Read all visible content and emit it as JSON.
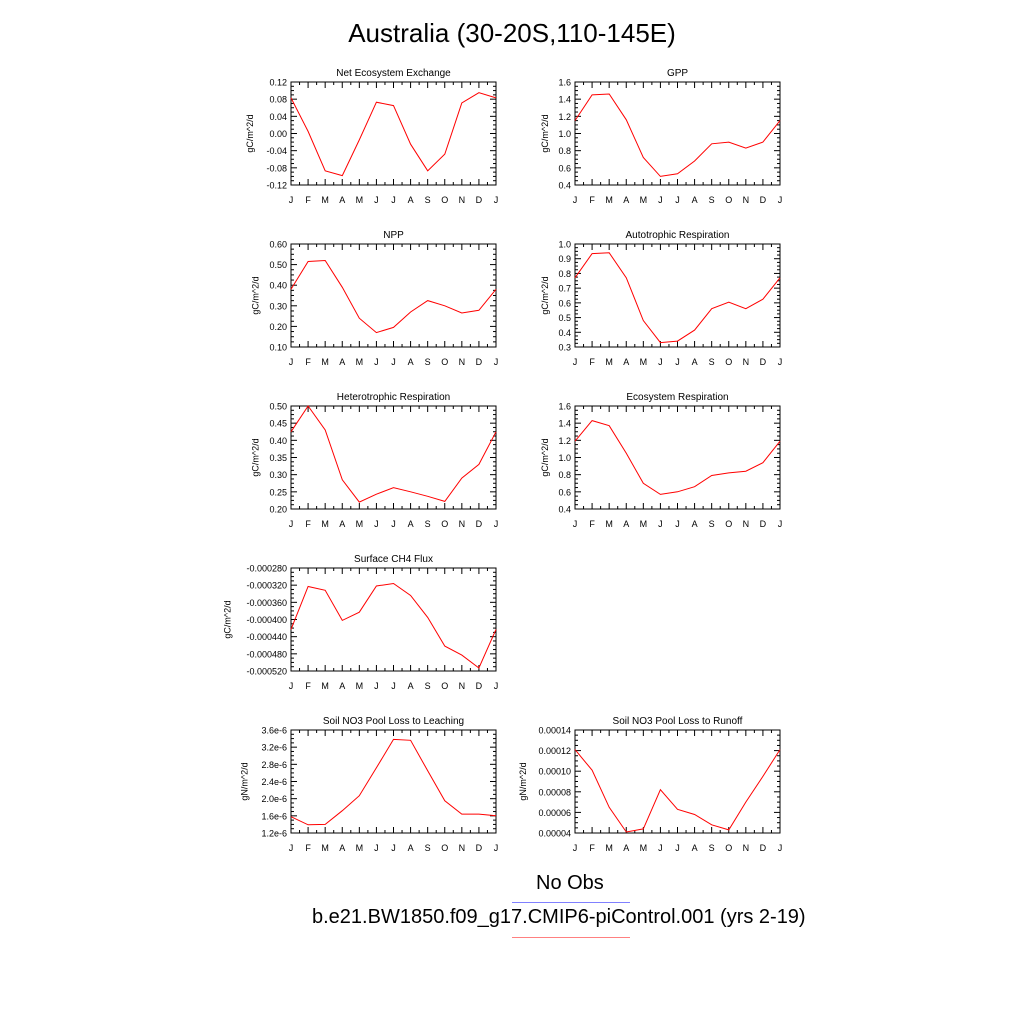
{
  "title": "Australia (30-20S,110-145E)",
  "legend": {
    "obs_label": "No Obs",
    "obs_color": "#8080ff",
    "case_label": "b.e21.BW1850.f09_g17.CMIP6-piControl.001 (yrs 2-19)",
    "case_color": "#ff8080"
  },
  "line_color": "#ff0000",
  "chart_data": [
    {
      "type": "line",
      "title": "Net Ecosystem Exchange",
      "ylabel": "gC/m^2/d",
      "x": [
        "J",
        "F",
        "M",
        "A",
        "M",
        "J",
        "J",
        "A",
        "S",
        "O",
        "N",
        "D",
        "J"
      ],
      "ylim": [
        -0.12,
        0.12
      ],
      "yticks": [
        "-0.12",
        "-0.08",
        "-0.04",
        "0.00",
        "0.04",
        "0.08",
        "0.12"
      ],
      "yticks_vals": [
        -0.12,
        -0.08,
        -0.04,
        0.0,
        0.04,
        0.08,
        0.12
      ],
      "values": [
        0.083,
        0.005,
        -0.087,
        -0.098,
        -0.015,
        0.073,
        0.065,
        -0.025,
        -0.087,
        -0.048,
        0.071,
        0.095,
        0.083
      ]
    },
    {
      "type": "line",
      "title": "GPP",
      "ylabel": "gC/m^2/d",
      "x": [
        "J",
        "F",
        "M",
        "A",
        "M",
        "J",
        "J",
        "A",
        "S",
        "O",
        "N",
        "D",
        "J"
      ],
      "ylim": [
        0.4,
        1.6
      ],
      "yticks": [
        "0.4",
        "0.6",
        "0.8",
        "1.0",
        "1.2",
        "1.4",
        "1.6"
      ],
      "yticks_vals": [
        0.4,
        0.6,
        0.8,
        1.0,
        1.2,
        1.4,
        1.6
      ],
      "values": [
        1.15,
        1.45,
        1.46,
        1.16,
        0.72,
        0.5,
        0.53,
        0.68,
        0.88,
        0.9,
        0.83,
        0.9,
        1.15
      ]
    },
    {
      "type": "line",
      "title": "NPP",
      "ylabel": "gC/m^2/d",
      "x": [
        "J",
        "F",
        "M",
        "A",
        "M",
        "J",
        "J",
        "A",
        "S",
        "O",
        "N",
        "D",
        "J"
      ],
      "ylim": [
        0.1,
        0.6
      ],
      "yticks": [
        "0.10",
        "0.20",
        "0.30",
        "0.40",
        "0.50",
        "0.60"
      ],
      "yticks_vals": [
        0.1,
        0.2,
        0.3,
        0.4,
        0.5,
        0.6
      ],
      "values": [
        0.38,
        0.515,
        0.52,
        0.39,
        0.24,
        0.17,
        0.195,
        0.27,
        0.325,
        0.3,
        0.265,
        0.278,
        0.38
      ]
    },
    {
      "type": "line",
      "title": "Autotrophic Respiration",
      "ylabel": "gC/m^2/d",
      "x": [
        "J",
        "F",
        "M",
        "A",
        "M",
        "J",
        "J",
        "A",
        "S",
        "O",
        "N",
        "D",
        "J"
      ],
      "ylim": [
        0.3,
        1.0
      ],
      "yticks": [
        "0.3",
        "0.4",
        "0.5",
        "0.6",
        "0.7",
        "0.8",
        "0.9",
        "1.0"
      ],
      "yticks_vals": [
        0.3,
        0.4,
        0.5,
        0.6,
        0.7,
        0.8,
        0.9,
        1.0
      ],
      "values": [
        0.77,
        0.935,
        0.94,
        0.77,
        0.48,
        0.33,
        0.34,
        0.415,
        0.56,
        0.605,
        0.56,
        0.625,
        0.77
      ]
    },
    {
      "type": "line",
      "title": "Heterotrophic Respiration",
      "ylabel": "gC/m^2/d",
      "x": [
        "J",
        "F",
        "M",
        "A",
        "M",
        "J",
        "J",
        "A",
        "S",
        "O",
        "N",
        "D",
        "J"
      ],
      "ylim": [
        0.2,
        0.5
      ],
      "yticks": [
        "0.20",
        "0.25",
        "0.30",
        "0.35",
        "0.40",
        "0.45",
        "0.50"
      ],
      "yticks_vals": [
        0.2,
        0.25,
        0.3,
        0.35,
        0.4,
        0.45,
        0.5
      ],
      "values": [
        0.425,
        0.5,
        0.43,
        0.285,
        0.22,
        0.243,
        0.262,
        0.25,
        0.237,
        0.222,
        0.29,
        0.33,
        0.425
      ]
    },
    {
      "type": "line",
      "title": "Ecosystem Respiration",
      "ylabel": "gC/m^2/d",
      "x": [
        "J",
        "F",
        "M",
        "A",
        "M",
        "J",
        "J",
        "A",
        "S",
        "O",
        "N",
        "D",
        "J"
      ],
      "ylim": [
        0.4,
        1.6
      ],
      "yticks": [
        "0.4",
        "0.6",
        "0.8",
        "1.0",
        "1.2",
        "1.4",
        "1.6"
      ],
      "yticks_vals": [
        0.4,
        0.6,
        0.8,
        1.0,
        1.2,
        1.4,
        1.6
      ],
      "values": [
        1.19,
        1.43,
        1.37,
        1.05,
        0.7,
        0.57,
        0.6,
        0.66,
        0.79,
        0.82,
        0.84,
        0.94,
        1.19
      ]
    },
    {
      "type": "line",
      "title": "Surface CH4 Flux",
      "ylabel": "gC/m^2/d",
      "x": [
        "J",
        "F",
        "M",
        "A",
        "M",
        "J",
        "J",
        "A",
        "S",
        "O",
        "N",
        "D",
        "J"
      ],
      "ylim": [
        -0.00052,
        -0.00028
      ],
      "yticks": [
        "-0.000520",
        "-0.000480",
        "-0.000440",
        "-0.000400",
        "-0.000360",
        "-0.000320",
        "-0.000280"
      ],
      "yticks_vals": [
        -0.00052,
        -0.00048,
        -0.00044,
        -0.0004,
        -0.00036,
        -0.00032,
        -0.00028
      ],
      "values": [
        -0.000423,
        -0.000323,
        -0.000332,
        -0.000402,
        -0.000383,
        -0.000322,
        -0.000316,
        -0.000344,
        -0.000395,
        -0.000462,
        -0.000483,
        -0.000513,
        -0.000423
      ]
    },
    {
      "type": "line",
      "title": "Soil NO3 Pool Loss to Leaching",
      "ylabel": "gN/m^2/d",
      "x": [
        "J",
        "F",
        "M",
        "A",
        "M",
        "J",
        "J",
        "A",
        "S",
        "O",
        "N",
        "D",
        "J"
      ],
      "ylim": [
        1.2e-06,
        3.6e-06
      ],
      "yticks": [
        "1.2e-6",
        "1.6e-6",
        "2.0e-6",
        "2.4e-6",
        "2.8e-6",
        "3.2e-6",
        "3.6e-6"
      ],
      "yticks_vals": [
        1.2e-06,
        1.6e-06,
        2e-06,
        2.4e-06,
        2.8e-06,
        3.2e-06,
        3.6e-06
      ],
      "values": [
        1.58e-06,
        1.39e-06,
        1.4e-06,
        1.72e-06,
        2.07e-06,
        2.72e-06,
        3.38e-06,
        3.36e-06,
        2.65e-06,
        1.95e-06,
        1.64e-06,
        1.64e-06,
        1.6e-06
      ]
    },
    {
      "type": "line",
      "title": "Soil NO3 Pool Loss to Runoff",
      "ylabel": "gN/m^2/d",
      "x": [
        "J",
        "F",
        "M",
        "A",
        "M",
        "J",
        "J",
        "A",
        "S",
        "O",
        "N",
        "D",
        "J"
      ],
      "ylim": [
        4e-05,
        0.00014
      ],
      "yticks": [
        "0.00004",
        "0.00006",
        "0.00008",
        "0.00010",
        "0.00012",
        "0.00014"
      ],
      "yticks_vals": [
        4e-05,
        6e-05,
        8e-05,
        0.0001,
        0.00012,
        0.00014
      ],
      "values": [
        0.000121,
        0.000101,
        6.5e-05,
        4.1e-05,
        4.4e-05,
        8.2e-05,
        6.3e-05,
        5.8e-05,
        4.8e-05,
        4.3e-05,
        7e-05,
        9.5e-05,
        0.000121
      ]
    }
  ]
}
